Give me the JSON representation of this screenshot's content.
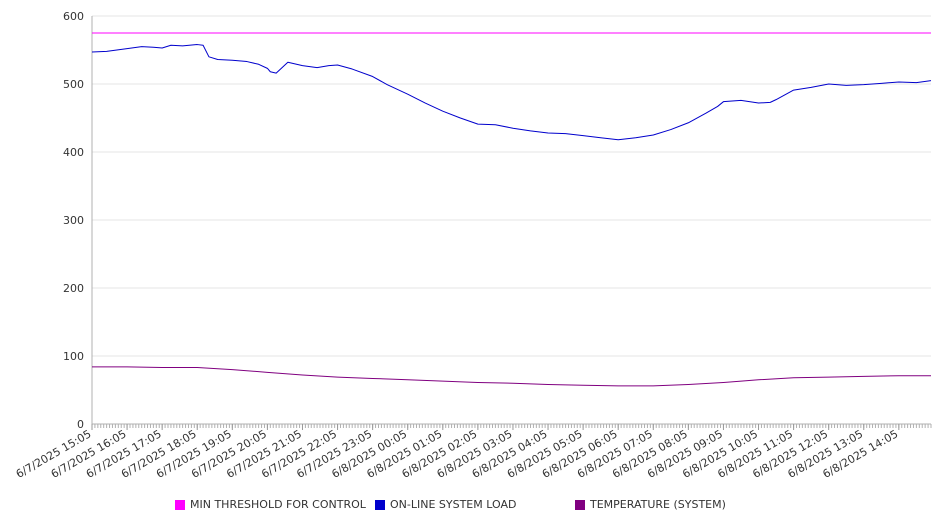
{
  "chart_data": {
    "type": "line",
    "ylim": [
      0,
      600
    ],
    "yticks": [
      "0",
      "100",
      "200",
      "300",
      "400",
      "500",
      "600"
    ],
    "categories": [
      "6/7/2025 15:05",
      "6/7/2025 16:05",
      "6/7/2025 17:05",
      "6/7/2025 18:05",
      "6/7/2025 19:05",
      "6/7/2025 20:05",
      "6/7/2025 21:05",
      "6/7/2025 22:05",
      "6/7/2025 23:05",
      "6/8/2025 00:05",
      "6/8/2025 01:05",
      "6/8/2025 02:05",
      "6/8/2025 03:05",
      "6/8/2025 04:05",
      "6/8/2025 05:05",
      "6/8/2025 06:05",
      "6/8/2025 07:05",
      "6/8/2025 08:05",
      "6/8/2025 09:05",
      "6/8/2025 10:05",
      "6/8/2025 11:05",
      "6/8/2025 12:05",
      "6/8/2025 13:05",
      "6/8/2025 14:05"
    ],
    "x_end": "6/8/2025 15:00",
    "grid": true,
    "legend_position": "bottom",
    "series": [
      {
        "name": "MIN THRESHOLD FOR CONTROL",
        "color": "#ff00ff",
        "x": [
          "6/7/2025 15:05",
          "6/8/2025 15:00"
        ],
        "values": [
          575,
          575
        ]
      },
      {
        "name": "ON-LINE SYSTEM LOAD",
        "color": "#0000cc",
        "x": [
          "6/7/2025 15:05",
          "6/7/2025 15:30",
          "6/7/2025 16:05",
          "6/7/2025 16:30",
          "6/7/2025 16:50",
          "6/7/2025 17:05",
          "6/7/2025 17:20",
          "6/7/2025 17:40",
          "6/7/2025 18:05",
          "6/7/2025 18:15",
          "6/7/2025 18:25",
          "6/7/2025 18:40",
          "6/7/2025 19:05",
          "6/7/2025 19:30",
          "6/7/2025 19:50",
          "6/7/2025 20:05",
          "6/7/2025 20:10",
          "6/7/2025 20:20",
          "6/7/2025 20:40",
          "6/7/2025 21:05",
          "6/7/2025 21:30",
          "6/7/2025 21:50",
          "6/7/2025 22:05",
          "6/7/2025 22:30",
          "6/7/2025 23:05",
          "6/7/2025 23:30",
          "6/8/2025 00:05",
          "6/8/2025 00:35",
          "6/8/2025 01:05",
          "6/8/2025 01:35",
          "6/8/2025 02:05",
          "6/8/2025 02:35",
          "6/8/2025 03:05",
          "6/8/2025 03:35",
          "6/8/2025 04:05",
          "6/8/2025 04:35",
          "6/8/2025 05:05",
          "6/8/2025 05:35",
          "6/8/2025 06:05",
          "6/8/2025 06:35",
          "6/8/2025 07:05",
          "6/8/2025 07:35",
          "6/8/2025 08:05",
          "6/8/2025 08:35",
          "6/8/2025 08:55",
          "6/8/2025 09:05",
          "6/8/2025 09:35",
          "6/8/2025 10:05",
          "6/8/2025 10:25",
          "6/8/2025 10:35",
          "6/8/2025 11:05",
          "6/8/2025 11:35",
          "6/8/2025 12:05",
          "6/8/2025 12:35",
          "6/8/2025 13:05",
          "6/8/2025 13:35",
          "6/8/2025 14:05",
          "6/8/2025 14:35",
          "6/8/2025 15:00"
        ],
        "values": [
          547,
          548,
          552,
          555,
          554,
          553,
          557,
          556,
          558,
          557,
          540,
          536,
          535,
          533,
          529,
          523,
          518,
          516,
          532,
          527,
          524,
          527,
          528,
          522,
          511,
          499,
          485,
          472,
          460,
          450,
          441,
          440,
          435,
          431,
          428,
          427,
          424,
          421,
          418,
          421,
          425,
          433,
          443,
          457,
          467,
          474,
          476,
          472,
          473,
          477,
          491,
          495,
          500,
          498,
          499,
          501,
          503,
          502,
          505
        ]
      },
      {
        "name": "TEMPERATURE (SYSTEM)",
        "color": "#800080",
        "x": [
          "6/7/2025 15:05",
          "6/7/2025 16:05",
          "6/7/2025 17:05",
          "6/7/2025 18:05",
          "6/7/2025 19:05",
          "6/7/2025 20:05",
          "6/7/2025 21:05",
          "6/7/2025 22:05",
          "6/7/2025 23:05",
          "6/8/2025 00:05",
          "6/8/2025 01:05",
          "6/8/2025 02:05",
          "6/8/2025 03:05",
          "6/8/2025 04:05",
          "6/8/2025 05:05",
          "6/8/2025 06:05",
          "6/8/2025 07:05",
          "6/8/2025 08:05",
          "6/8/2025 09:05",
          "6/8/2025 10:05",
          "6/8/2025 11:05",
          "6/8/2025 12:05",
          "6/8/2025 13:05",
          "6/8/2025 14:05",
          "6/8/2025 15:00"
        ],
        "values": [
          84,
          84,
          83,
          83,
          80,
          76,
          72,
          69,
          67,
          65,
          63,
          61,
          60,
          58,
          57,
          56,
          56,
          58,
          61,
          65,
          68,
          69,
          70,
          71,
          71
        ]
      }
    ]
  }
}
